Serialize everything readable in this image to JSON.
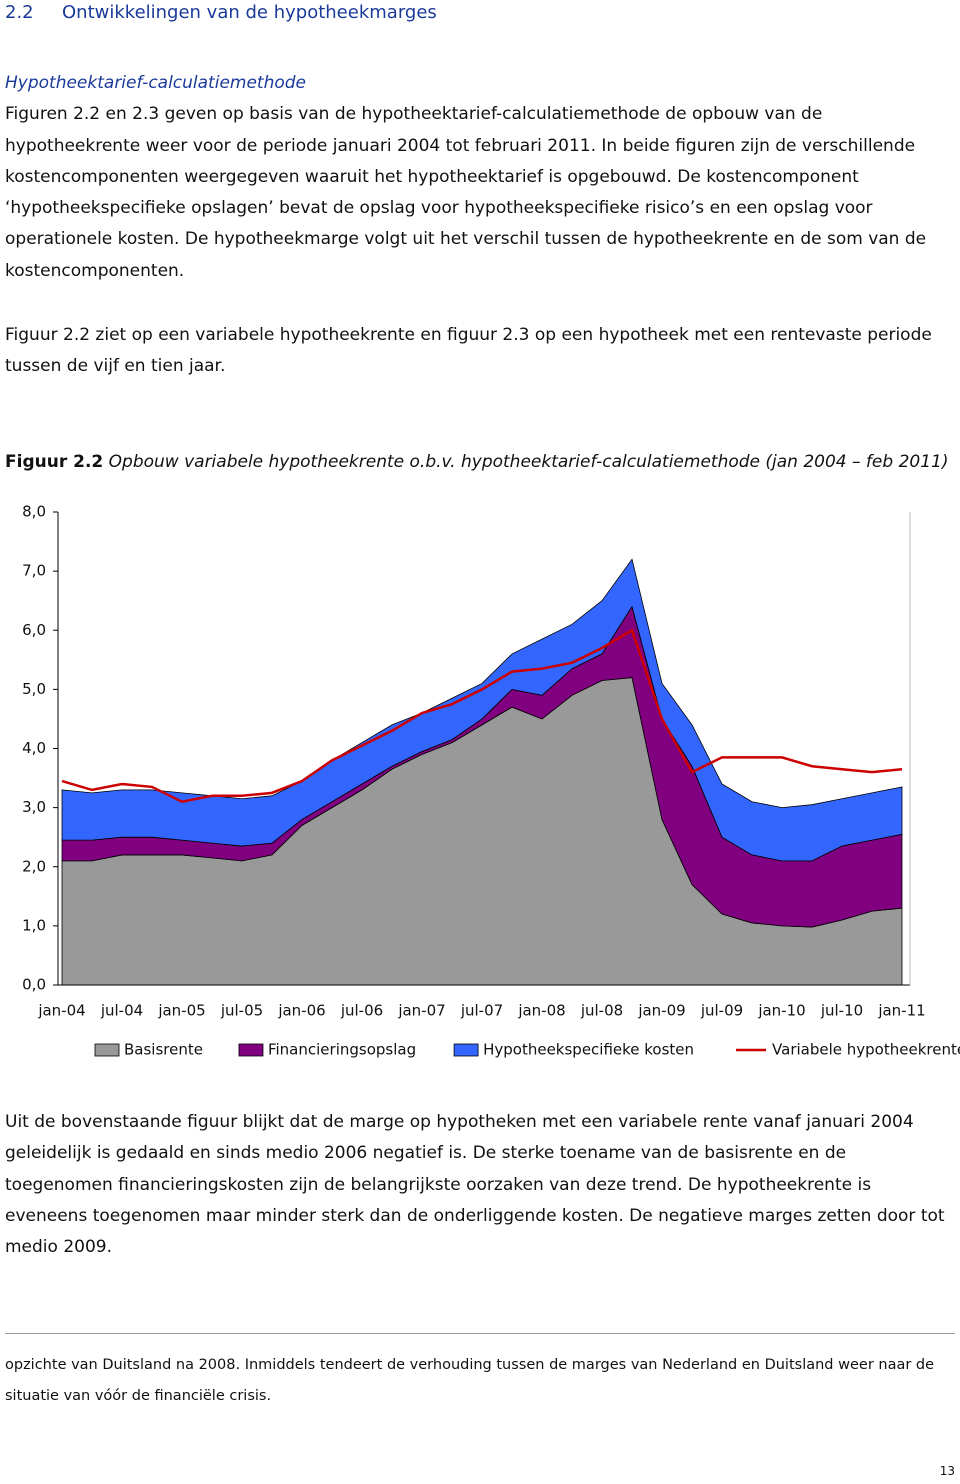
{
  "header": {
    "number": "2.2",
    "title": "Ontwikkelingen van de hypotheekmarges"
  },
  "subheading": "Hypotheektarief-calculatiemethode",
  "paragraphs": [
    "Figuren 2.2 en 2.3 geven op basis van de hypotheektarief-calculatiemethode de opbouw van de hypotheekrente weer voor de periode januari 2004 tot februari 2011. In beide figuren zijn de verschillende kostencomponenten weergegeven waaruit het hypotheektarief is opgebouwd. De kostencomponent ‘hypotheekspecifieke opslagen’ bevat de opslag voor hypotheekspecifieke risico’s en een opslag voor operationele kosten. De hypotheekmarge volgt uit het verschil tussen de hypotheekrente en de som van de kostencomponenten.",
    "Figuur 2.2 ziet op een variabele hypotheekrente en figuur 2.3 op een hypotheek met een rentevaste periode tussen de vijf en tien jaar.",
    "Uit de bovenstaande figuur blijkt dat de marge op hypotheken met een variabele rente vanaf januari 2004 geleidelijk is gedaald en sinds medio 2006 negatief is. De sterke toename van de basisrente en de toegenomen financieringskosten zijn de belangrijkste oorzaken van deze trend. De hypotheekrente is eveneens toegenomen maar minder sterk dan de onderliggende kosten. De negatieve marges zetten door tot medio 2009."
  ],
  "caption": {
    "label": "Figuur 2.2",
    "text": "Opbouw variabele hypotheekrente o.b.v. hypotheektarief-calculatiemethode (jan 2004 – feb 2011)"
  },
  "footnote": "opzichte van Duitsland na 2008. Inmiddels tendeert de verhouding tussen de marges van Nederland en Duitsland weer naar de situatie van vóór de financiële crisis.",
  "page_number": "13",
  "chart_data": {
    "type": "stacked-area",
    "grid": false,
    "legend": "bottom",
    "categories": [
      "jan-04",
      null,
      "jul-04",
      null,
      "jan-05",
      null,
      "jul-05",
      null,
      "jan-06",
      null,
      "jul-06",
      null,
      "jan-07",
      null,
      "jul-07",
      null,
      "jan-08",
      null,
      "jul-08",
      null,
      "jan-09",
      null,
      "jul-09",
      null,
      "jan-10",
      null,
      "jul-10",
      null,
      "jan-11"
    ],
    "ylim": [
      0,
      8
    ],
    "yticks": [
      {
        "value": 0,
        "label": "0,0"
      },
      {
        "value": 1,
        "label": "1,0"
      },
      {
        "value": 2,
        "label": "2,0"
      },
      {
        "value": 3,
        "label": "3,0"
      },
      {
        "value": 4,
        "label": "4,0"
      },
      {
        "value": 5,
        "label": "5,0"
      },
      {
        "value": 6,
        "label": "6,0"
      },
      {
        "value": 7,
        "label": "7,0"
      },
      {
        "value": 8,
        "label": "8,0"
      }
    ],
    "series": [
      {
        "name": "Basisrente",
        "color": "#999999",
        "values": [
          2.1,
          2.1,
          2.2,
          2.2,
          2.2,
          2.15,
          2.1,
          2.2,
          2.7,
          3.0,
          3.3,
          3.65,
          3.9,
          4.1,
          4.4,
          4.7,
          4.5,
          4.9,
          5.15,
          5.2,
          2.8,
          1.7,
          1.2,
          1.05,
          1.0,
          0.98,
          1.1,
          1.25,
          1.3
        ]
      },
      {
        "name": "Financieringsopslag",
        "color": "#800080",
        "values": [
          0.35,
          0.35,
          0.3,
          0.3,
          0.25,
          0.25,
          0.25,
          0.2,
          0.1,
          0.1,
          0.1,
          0.05,
          0.05,
          0.05,
          0.1,
          0.3,
          0.4,
          0.45,
          0.45,
          1.2,
          1.7,
          2.0,
          1.3,
          1.15,
          1.1,
          1.12,
          1.25,
          1.2,
          1.25
        ]
      },
      {
        "name": "Hypotheekspecifieke kosten",
        "color": "#3366ff",
        "values": [
          0.85,
          0.8,
          0.8,
          0.8,
          0.8,
          0.8,
          0.8,
          0.8,
          0.65,
          0.7,
          0.7,
          0.7,
          0.65,
          0.7,
          0.6,
          0.6,
          0.95,
          0.75,
          0.9,
          0.8,
          0.6,
          0.7,
          0.9,
          0.9,
          0.9,
          0.95,
          0.8,
          0.8,
          0.8
        ]
      },
      {
        "name": "Variabele hypotheekrente",
        "color": "#cc0000",
        "type": "line",
        "values": [
          3.45,
          3.3,
          3.4,
          3.35,
          3.1,
          3.2,
          3.2,
          3.25,
          3.45,
          3.8,
          4.05,
          4.3,
          4.6,
          4.75,
          5.0,
          5.3,
          5.35,
          5.45,
          5.7,
          6.0,
          4.5,
          3.6,
          3.85,
          3.85,
          3.85,
          3.7,
          3.65,
          3.6,
          3.65
        ]
      }
    ]
  }
}
